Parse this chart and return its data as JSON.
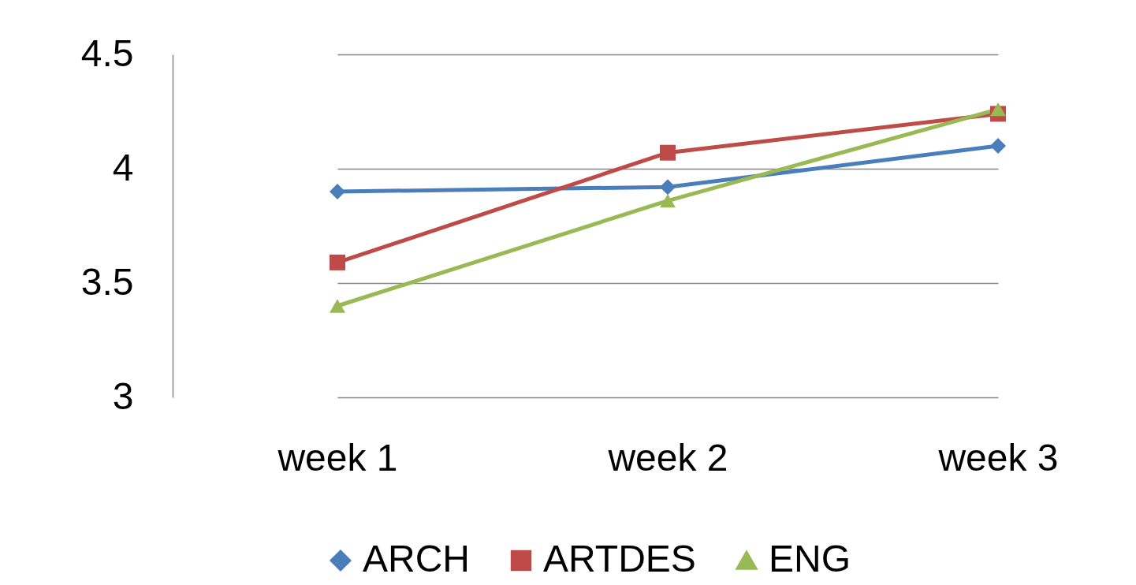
{
  "chart_data": {
    "type": "line",
    "categories": [
      "week 1",
      "week 2",
      "week 3"
    ],
    "series": [
      {
        "name": "ARCH",
        "color": "#4a7ebb",
        "marker": "diamond",
        "values": [
          3.9,
          3.92,
          4.1
        ]
      },
      {
        "name": "ARTDES",
        "color": "#be4b48",
        "marker": "square",
        "values": [
          3.59,
          4.07,
          4.24
        ]
      },
      {
        "name": "ENG",
        "color": "#98b954",
        "marker": "triangle",
        "values": [
          3.4,
          3.86,
          4.26
        ]
      }
    ],
    "ylim": [
      3,
      4.5
    ],
    "yticks": [
      3,
      3.5,
      4,
      4.5
    ],
    "grid": "y",
    "legend": "bottom"
  }
}
